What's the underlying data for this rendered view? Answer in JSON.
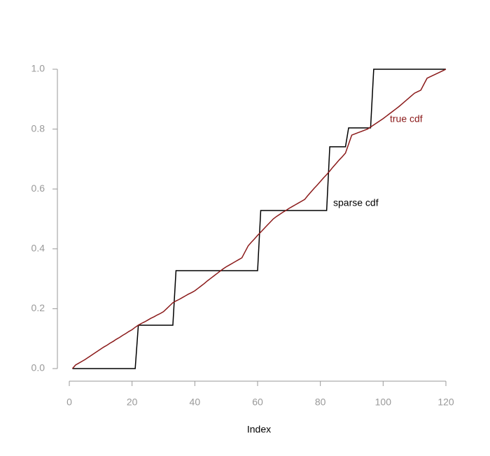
{
  "chart_data": {
    "type": "line",
    "x_label": "Index",
    "x": [
      1,
      2,
      3,
      4,
      5,
      6,
      7,
      8,
      9,
      10,
      11,
      12,
      13,
      14,
      15,
      16,
      17,
      18,
      19,
      20,
      21,
      22,
      23,
      24,
      25,
      26,
      27,
      28,
      29,
      30,
      31,
      32,
      33,
      34,
      35,
      36,
      37,
      38,
      39,
      40,
      41,
      42,
      43,
      44,
      45,
      46,
      47,
      48,
      49,
      50,
      51,
      52,
      53,
      54,
      55,
      56,
      57,
      58,
      59,
      60,
      61,
      62,
      63,
      64,
      65,
      66,
      67,
      68,
      69,
      70,
      71,
      72,
      73,
      74,
      75,
      76,
      77,
      78,
      79,
      80,
      81,
      82,
      83,
      84,
      85,
      86,
      87,
      88,
      89,
      90,
      91,
      92,
      93,
      94,
      95,
      96,
      97,
      98,
      99,
      100,
      101,
      102,
      103,
      104,
      105,
      106,
      107,
      108,
      109,
      110,
      111,
      112,
      113,
      114,
      115,
      116,
      117,
      118,
      119,
      120
    ],
    "series": [
      {
        "name": "sparse cdf",
        "color": "#000000",
        "values": [
          0,
          0,
          0,
          0,
          0,
          0,
          0,
          0,
          0,
          0,
          0,
          0,
          0,
          0,
          0,
          0,
          0,
          0,
          0,
          0,
          0,
          0.145,
          0.145,
          0.145,
          0.145,
          0.145,
          0.145,
          0.145,
          0.145,
          0.145,
          0.145,
          0.145,
          0.145,
          0.327,
          0.327,
          0.327,
          0.327,
          0.327,
          0.327,
          0.327,
          0.327,
          0.327,
          0.327,
          0.327,
          0.327,
          0.327,
          0.327,
          0.327,
          0.327,
          0.327,
          0.327,
          0.327,
          0.327,
          0.327,
          0.327,
          0.327,
          0.327,
          0.327,
          0.327,
          0.327,
          0.528,
          0.528,
          0.528,
          0.528,
          0.528,
          0.528,
          0.528,
          0.528,
          0.528,
          0.528,
          0.528,
          0.528,
          0.528,
          0.528,
          0.528,
          0.528,
          0.528,
          0.528,
          0.528,
          0.528,
          0.528,
          0.528,
          0.741,
          0.741,
          0.741,
          0.741,
          0.741,
          0.741,
          0.804,
          0.804,
          0.804,
          0.804,
          0.804,
          0.804,
          0.804,
          0.804,
          1.0,
          1.0,
          1.0,
          1.0,
          1.0,
          1.0,
          1.0,
          1.0,
          1.0,
          1.0,
          1.0,
          1.0,
          1.0,
          1.0,
          1.0,
          1.0,
          1.0,
          1.0,
          1.0,
          1.0,
          1.0,
          1.0,
          1.0,
          1.0
        ]
      },
      {
        "name": "true cdf",
        "color": "#8b1a1a",
        "values": [
          0,
          0.012,
          0.018,
          0.024,
          0.03,
          0.037,
          0.044,
          0.051,
          0.058,
          0.065,
          0.072,
          0.078,
          0.085,
          0.091,
          0.098,
          0.104,
          0.111,
          0.117,
          0.124,
          0.13,
          0.138,
          0.145,
          0.151,
          0.156,
          0.162,
          0.168,
          0.173,
          0.179,
          0.184,
          0.19,
          0.2,
          0.21,
          0.22,
          0.226,
          0.231,
          0.237,
          0.243,
          0.249,
          0.254,
          0.26,
          0.268,
          0.276,
          0.284,
          0.293,
          0.301,
          0.309,
          0.317,
          0.325,
          0.333,
          0.34,
          0.346,
          0.352,
          0.358,
          0.364,
          0.37,
          0.39,
          0.41,
          0.422,
          0.433,
          0.445,
          0.456,
          0.467,
          0.478,
          0.489,
          0.5,
          0.508,
          0.515,
          0.522,
          0.528,
          0.535,
          0.541,
          0.547,
          0.553,
          0.559,
          0.565,
          0.578,
          0.59,
          0.602,
          0.613,
          0.625,
          0.637,
          0.648,
          0.66,
          0.673,
          0.685,
          0.697,
          0.708,
          0.72,
          0.75,
          0.78,
          0.784,
          0.788,
          0.792,
          0.796,
          0.8,
          0.807,
          0.814,
          0.821,
          0.828,
          0.835,
          0.843,
          0.851,
          0.859,
          0.867,
          0.875,
          0.884,
          0.893,
          0.902,
          0.911,
          0.92,
          0.925,
          0.93,
          0.95,
          0.97,
          0.975,
          0.98,
          0.985,
          0.99,
          0.995,
          1.0
        ]
      }
    ],
    "xlim": [
      0,
      120
    ],
    "xticks": [
      0,
      20,
      40,
      60,
      80,
      100,
      120
    ],
    "ylim": [
      0,
      1
    ],
    "yticks": [
      {
        "value": 0,
        "label": "0.0"
      },
      {
        "value": 0.2,
        "label": "0.2"
      },
      {
        "value": 0.4,
        "label": "0.4"
      },
      {
        "value": 0.6,
        "label": "0.6"
      },
      {
        "value": 0.8,
        "label": "0.8"
      },
      {
        "value": 1,
        "label": "1.0"
      }
    ],
    "grid": false
  }
}
